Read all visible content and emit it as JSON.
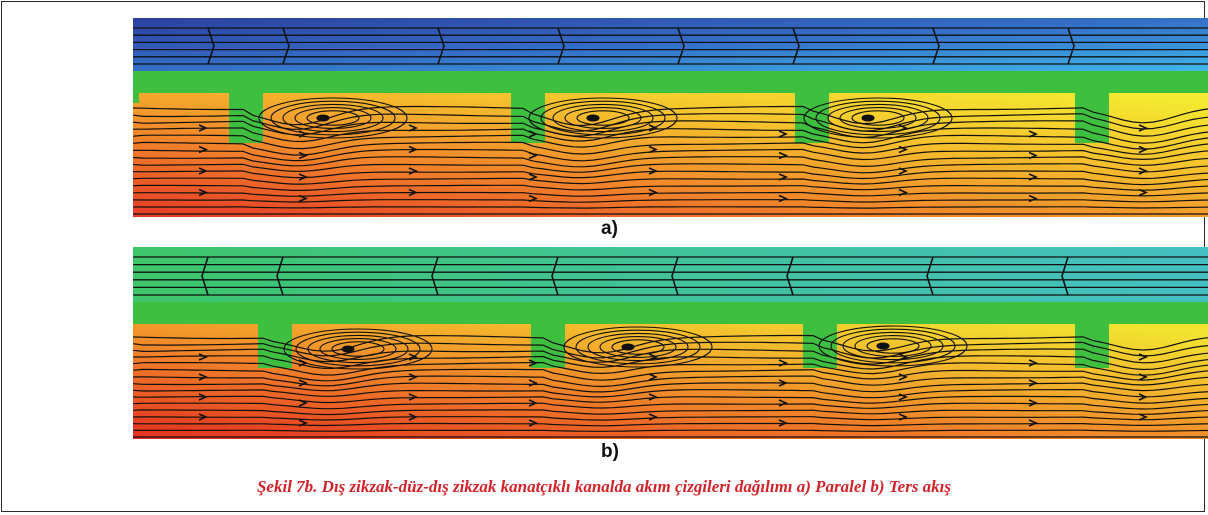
{
  "figure": {
    "panels": [
      {
        "label": "a)",
        "mode": "parallel"
      },
      {
        "label": "b)",
        "mode": "counter"
      }
    ],
    "caption": "Şekil 7b. Dış zikzak-düz-dış zikzak kanatçıklı kanalda akım çizgileri dağılımı a) Paralel b) Ters akış"
  },
  "colors": {
    "fin": "#3fbf3f",
    "caption": "#d2232a",
    "hot_start": "#e8412a",
    "hot_mid": "#f6a12b",
    "hot_end": "#f7e12e",
    "cold_a_start": "#2c4fb4",
    "cold_a_end": "#3ab3e6",
    "cold_b": "#3fc48f"
  }
}
